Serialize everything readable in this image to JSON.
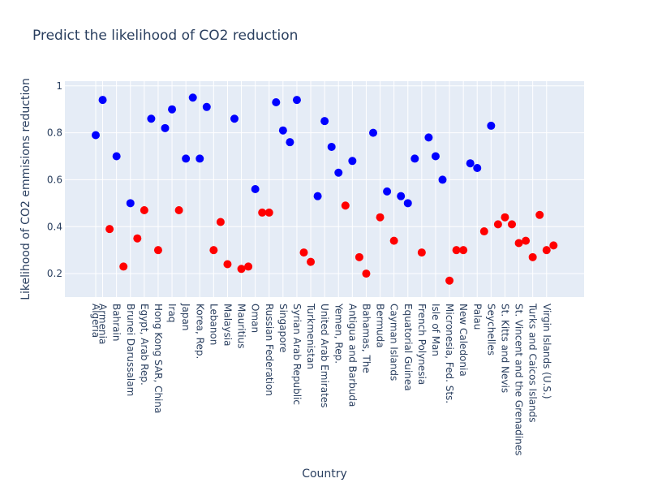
{
  "chart_data": {
    "type": "scatter",
    "title": "Predict the likelihood of CO2 reduction",
    "xlabel": "Country",
    "ylabel": "Likelihood of CO2 emmisions reduction",
    "yticks": [
      "0.2",
      "0.4",
      "0.6",
      "0.8",
      "1"
    ],
    "ylim": [
      0.1,
      1.02
    ],
    "grid": true,
    "colors": {
      "high": "#0000ff",
      "low": "#ff0000",
      "plot_bg": "#e5ecf6",
      "grid": "#ffffff",
      "text": "#2a3f5f"
    },
    "points": [
      {
        "x": "Algeria",
        "y": 0.79,
        "color": "blue"
      },
      {
        "x": "Armenia",
        "y": 0.94,
        "color": "blue"
      },
      {
        "x": "",
        "y": 0.39,
        "color": "red"
      },
      {
        "x": "Bahrain",
        "y": 0.7,
        "color": "blue"
      },
      {
        "x": "",
        "y": 0.23,
        "color": "red"
      },
      {
        "x": "Brunei Darussalam",
        "y": 0.5,
        "color": "blue"
      },
      {
        "x": "",
        "y": 0.35,
        "color": "red"
      },
      {
        "x": "Egypt, Arab Rep.",
        "y": 0.47,
        "color": "red"
      },
      {
        "x": "",
        "y": 0.86,
        "color": "blue"
      },
      {
        "x": "Hong Kong SAR, China",
        "y": 0.3,
        "color": "red"
      },
      {
        "x": "",
        "y": 0.82,
        "color": "blue"
      },
      {
        "x": "Iraq",
        "y": 0.9,
        "color": "blue"
      },
      {
        "x": "",
        "y": 0.47,
        "color": "red"
      },
      {
        "x": "Japan",
        "y": 0.69,
        "color": "blue"
      },
      {
        "x": "",
        "y": 0.95,
        "color": "blue"
      },
      {
        "x": "Korea, Rep.",
        "y": 0.69,
        "color": "blue"
      },
      {
        "x": "",
        "y": 0.91,
        "color": "blue"
      },
      {
        "x": "Lebanon",
        "y": 0.3,
        "color": "red"
      },
      {
        "x": "",
        "y": 0.42,
        "color": "red"
      },
      {
        "x": "Malaysia",
        "y": 0.24,
        "color": "red"
      },
      {
        "x": "",
        "y": 0.86,
        "color": "blue"
      },
      {
        "x": "Mauritius",
        "y": 0.22,
        "color": "red"
      },
      {
        "x": "",
        "y": 0.23,
        "color": "red"
      },
      {
        "x": "Oman",
        "y": 0.56,
        "color": "blue"
      },
      {
        "x": "",
        "y": 0.46,
        "color": "red"
      },
      {
        "x": "Russian Federation",
        "y": 0.46,
        "color": "red"
      },
      {
        "x": "",
        "y": 0.93,
        "color": "blue"
      },
      {
        "x": "Singapore",
        "y": 0.81,
        "color": "blue"
      },
      {
        "x": "",
        "y": 0.76,
        "color": "blue"
      },
      {
        "x": "Syrian Arab Republic",
        "y": 0.94,
        "color": "blue"
      },
      {
        "x": "",
        "y": 0.29,
        "color": "red"
      },
      {
        "x": "Turkmenistan",
        "y": 0.25,
        "color": "red"
      },
      {
        "x": "",
        "y": 0.53,
        "color": "blue"
      },
      {
        "x": "United Arab Emirates",
        "y": 0.85,
        "color": "blue"
      },
      {
        "x": "",
        "y": 0.74,
        "color": "blue"
      },
      {
        "x": "Yemen, Rep.",
        "y": 0.63,
        "color": "blue"
      },
      {
        "x": "",
        "y": 0.49,
        "color": "red"
      },
      {
        "x": "Antigua and Barbuda",
        "y": 0.68,
        "color": "blue"
      },
      {
        "x": "",
        "y": 0.27,
        "color": "red"
      },
      {
        "x": "Bahamas, The",
        "y": 0.2,
        "color": "red"
      },
      {
        "x": "",
        "y": 0.8,
        "color": "blue"
      },
      {
        "x": "Bermuda",
        "y": 0.44,
        "color": "red"
      },
      {
        "x": "",
        "y": 0.55,
        "color": "blue"
      },
      {
        "x": "Cayman Islands",
        "y": 0.34,
        "color": "red"
      },
      {
        "x": "",
        "y": 0.53,
        "color": "blue"
      },
      {
        "x": "Equatorial Guinea",
        "y": 0.5,
        "color": "blue"
      },
      {
        "x": "",
        "y": 0.69,
        "color": "blue"
      },
      {
        "x": "French Polynesia",
        "y": 0.29,
        "color": "red"
      },
      {
        "x": "",
        "y": 0.78,
        "color": "blue"
      },
      {
        "x": "Isle of Man",
        "y": 0.7,
        "color": "blue"
      },
      {
        "x": "",
        "y": 0.6,
        "color": "blue"
      },
      {
        "x": "Micronesia, Fed. Sts.",
        "y": 0.17,
        "color": "red"
      },
      {
        "x": "",
        "y": 0.3,
        "color": "red"
      },
      {
        "x": "New Caledonia",
        "y": 0.3,
        "color": "red"
      },
      {
        "x": "",
        "y": 0.67,
        "color": "blue"
      },
      {
        "x": "Palau",
        "y": 0.65,
        "color": "blue"
      },
      {
        "x": "",
        "y": 0.38,
        "color": "red"
      },
      {
        "x": "Seychelles",
        "y": 0.83,
        "color": "blue"
      },
      {
        "x": "",
        "y": 0.41,
        "color": "red"
      },
      {
        "x": "St. Kitts and Nevis",
        "y": 0.44,
        "color": "red"
      },
      {
        "x": "",
        "y": 0.41,
        "color": "red"
      },
      {
        "x": "St. Vincent and the Grenadines",
        "y": 0.33,
        "color": "red"
      },
      {
        "x": "",
        "y": 0.34,
        "color": "red"
      },
      {
        "x": "Turks and Caicos Islands",
        "y": 0.27,
        "color": "red"
      },
      {
        "x": "",
        "y": 0.45,
        "color": "red"
      },
      {
        "x": "Virgin Islands (U.S.)",
        "y": 0.3,
        "color": "red"
      },
      {
        "x": "",
        "y": 0.32,
        "color": "red"
      }
    ]
  }
}
